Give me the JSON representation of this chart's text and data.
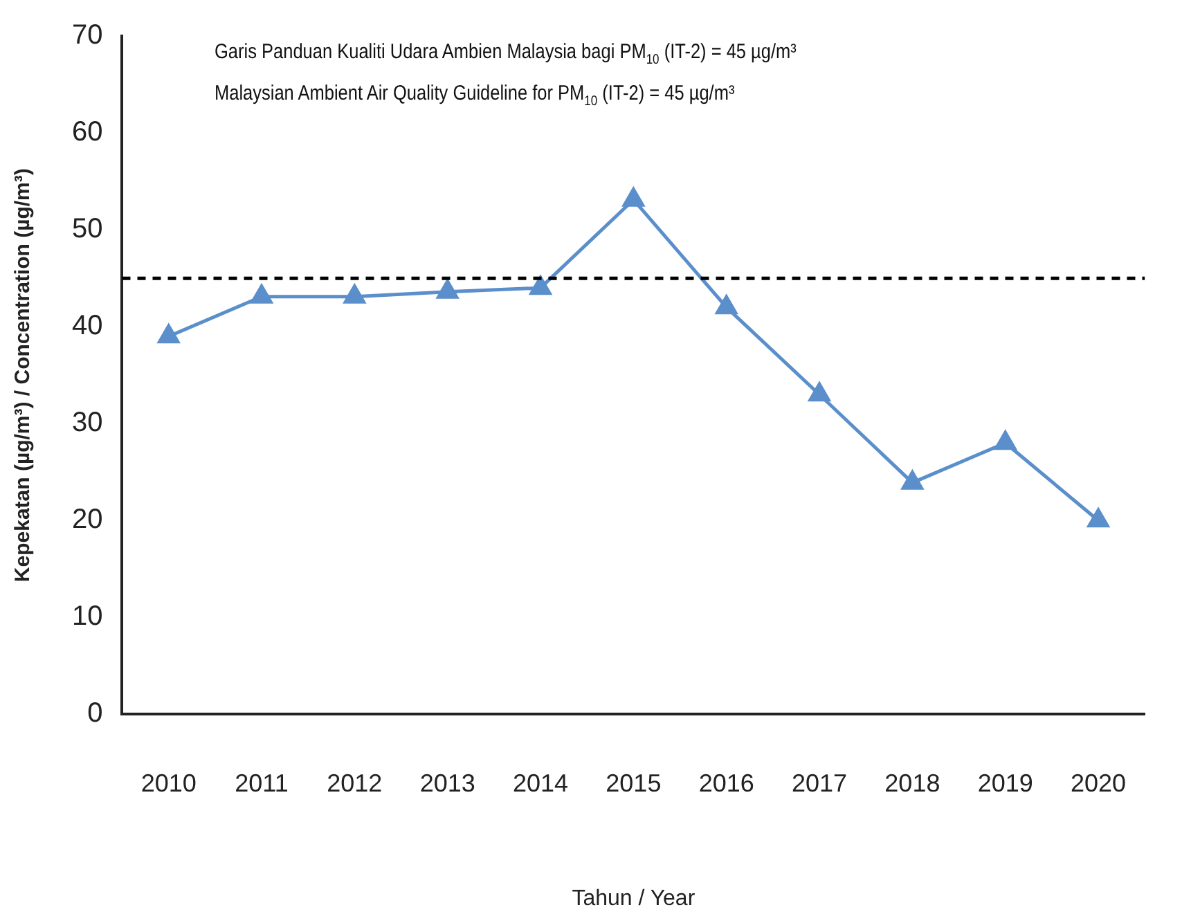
{
  "chart_data": {
    "type": "line",
    "xlabel": "Tahun / Year",
    "ylabel": "Kepekatan (µg/m³) / Concentration (µg/m³)",
    "annotations": [
      "Garis Panduan Kualiti Udara Ambien Malaysia bagi PM$_{10}$ (IT-2) = 45 µg/m³",
      "Malaysian Ambient Air Quality Guideline for PM$_{10}$ (IT-2) = 45 µg/m³"
    ],
    "categories": [
      "2010",
      "2011",
      "2012",
      "2013",
      "2014",
      "2015",
      "2016",
      "2017",
      "2018",
      "2019",
      "2020"
    ],
    "series": [
      {
        "color": "#5b8fcb",
        "values": [
          39,
          43.1,
          43.1,
          43.6,
          44,
          53.1,
          42,
          33,
          23.9,
          28,
          20
        ]
      }
    ],
    "ylim": [
      0,
      70
    ],
    "yticks": [
      0,
      10,
      20,
      30,
      40,
      50,
      60,
      70
    ],
    "grid": false,
    "legend": false,
    "marker": "triangle",
    "line_style": "solid",
    "ref_lines": [
      {
        "axis": "y",
        "value": 45,
        "color": "#000000",
        "line_style": "dashed"
      }
    ]
  }
}
